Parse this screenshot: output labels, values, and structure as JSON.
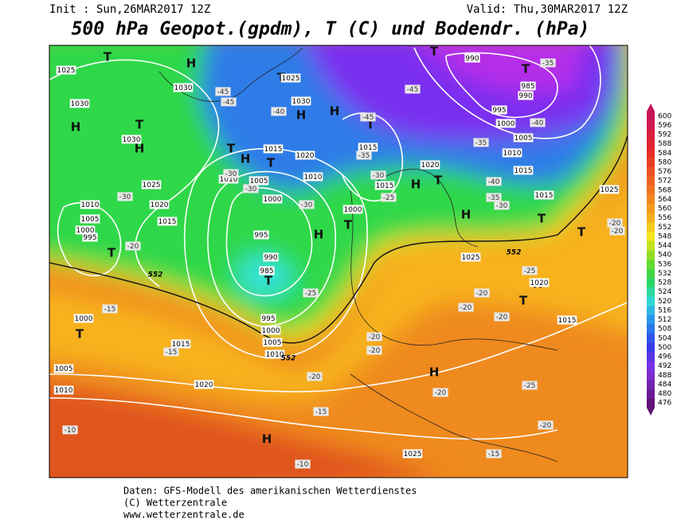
{
  "header": {
    "init": "Init : Sun,26MAR2017 12Z",
    "valid": "Valid: Thu,30MAR2017 12Z",
    "title": "500 hPa Geopot.(gpdm), T (C) und Bodendr. (hPa)"
  },
  "colorbar": {
    "levels": [
      600,
      596,
      592,
      588,
      584,
      580,
      576,
      572,
      568,
      564,
      560,
      556,
      552,
      548,
      544,
      540,
      536,
      532,
      528,
      524,
      520,
      516,
      512,
      508,
      504,
      500,
      496,
      492,
      488,
      484,
      480,
      476
    ]
  },
  "map": {
    "pressure_centers": [
      "H",
      "H",
      "H",
      "H",
      "H",
      "H",
      "H",
      "H",
      "H",
      "H",
      "H",
      "H",
      "T",
      "T",
      "T",
      "T",
      "T",
      "T",
      "T",
      "T",
      "T",
      "T",
      "T",
      "T",
      "T",
      "T",
      "T",
      "T",
      "T"
    ],
    "isobars": [
      "1025",
      "1030",
      "1030",
      "1030",
      "1025",
      "1030",
      "1015",
      "1020",
      "1010",
      "1005",
      "1010",
      "1000",
      "1025",
      "1020",
      "1010",
      "1015",
      "1005",
      "1000",
      "995",
      "995",
      "990",
      "985",
      "1015",
      "1015",
      "1000",
      "1020",
      "990",
      "985",
      "990",
      "995",
      "1000",
      "1005",
      "1010",
      "1015",
      "1015",
      "1025",
      "1025",
      "995",
      "1000",
      "1005",
      "1010",
      "1015",
      "1020",
      "1005",
      "1010",
      "1000",
      "1020",
      "1015",
      "1025"
    ],
    "temperatures": [
      "-35",
      "-45",
      "-45",
      "-40",
      "-45",
      "-45",
      "-40",
      "-35",
      "-35",
      "-30",
      "-30",
      "-30",
      "-25",
      "-30",
      "-30",
      "-20",
      "-40",
      "-35",
      "-30",
      "-20",
      "-20",
      "-25",
      "-25",
      "-20",
      "-20",
      "-20",
      "-20",
      "-20",
      "-20",
      "-20",
      "-15",
      "-15",
      "-15",
      "-10",
      "-10",
      "-25",
      "-20",
      "-15"
    ],
    "isohypse_labels": [
      "552",
      "552",
      "552"
    ]
  },
  "footer": {
    "lines": [
      "Daten: GFS-Modell des amerikanischen Wetterdienstes",
      "(C) Wetterzentrale",
      "www.wetterzentrale.de"
    ]
  }
}
